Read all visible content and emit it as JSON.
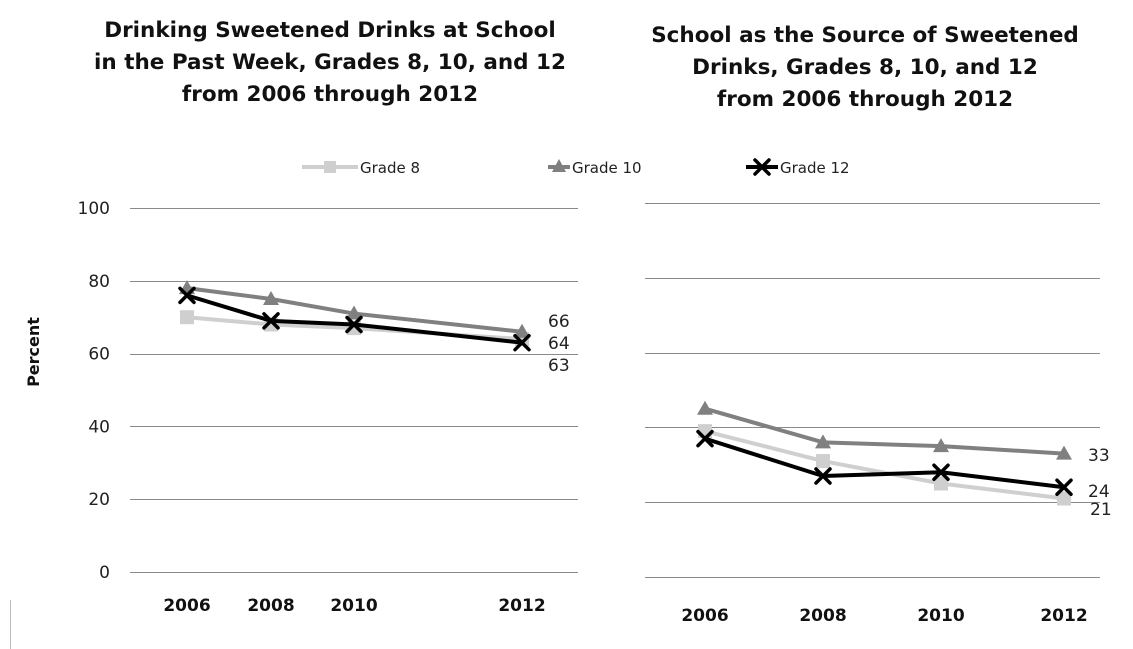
{
  "legend": [
    {
      "name": "Grade 8",
      "color": "#cfcfcf",
      "marker": "square"
    },
    {
      "name": "Grade 10",
      "color": "#808080",
      "marker": "triangle"
    },
    {
      "name": "Grade 12",
      "color": "#000000",
      "marker": "x"
    }
  ],
  "ylabel": "Percent",
  "chart_data": [
    {
      "type": "line",
      "title": "Drinking Sweetened Drinks at School\nin the Past Week, Grades 8, 10, and 12\nfrom 2006 through 2012",
      "categories": [
        "2006",
        "2008",
        "2010",
        "2012"
      ],
      "ylim": [
        0,
        100
      ],
      "yticks": [
        "0",
        "20",
        "40",
        "60",
        "80",
        "100"
      ],
      "grid": true,
      "legend_position": "top",
      "series": [
        {
          "name": "Grade 8",
          "values": [
            70,
            68,
            67,
            64
          ],
          "end_label": "64"
        },
        {
          "name": "Grade 10",
          "values": [
            78,
            75,
            71,
            66
          ],
          "end_label": "66"
        },
        {
          "name": "Grade 12",
          "values": [
            76,
            69,
            68,
            63
          ],
          "end_label": "63"
        }
      ]
    },
    {
      "type": "line",
      "title": "School as the Source of Sweetened\nDrinks, Grades 8, 10, and 12\nfrom 2006 through 2012",
      "categories": [
        "2006",
        "2008",
        "2010",
        "2012"
      ],
      "ylim": [
        0,
        100
      ],
      "grid": true,
      "series": [
        {
          "name": "Grade 8",
          "values": [
            39,
            31,
            25,
            21
          ],
          "end_label": "21"
        },
        {
          "name": "Grade 10",
          "values": [
            45,
            36,
            35,
            33
          ],
          "end_label": "33"
        },
        {
          "name": "Grade 12",
          "values": [
            37,
            27,
            28,
            24
          ],
          "end_label": "24"
        }
      ]
    }
  ]
}
